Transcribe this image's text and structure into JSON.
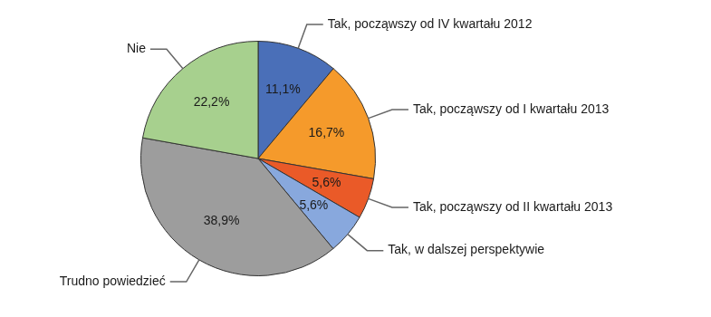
{
  "chart_data": {
    "type": "pie",
    "categories": [
      "Tak, począwszy od IV kwartału 2012",
      "Tak, począwszy od I kwartału 2013",
      "Tak, począwszy od II kwartału 2013",
      "Tak, w dalszej perspektywie",
      "Trudno powiedzieć",
      "Nie"
    ],
    "values": [
      11.1,
      16.7,
      5.6,
      5.6,
      38.9,
      22.2
    ],
    "value_labels": [
      "11,1%",
      "16,7%",
      "5,6%",
      "5,6%",
      "38,9%",
      "22,2%"
    ],
    "colors": [
      "#4a6fb8",
      "#f59a2b",
      "#ea5a28",
      "#88a8dd",
      "#9d9d9d",
      "#a7d08e"
    ],
    "data_labels": true
  }
}
